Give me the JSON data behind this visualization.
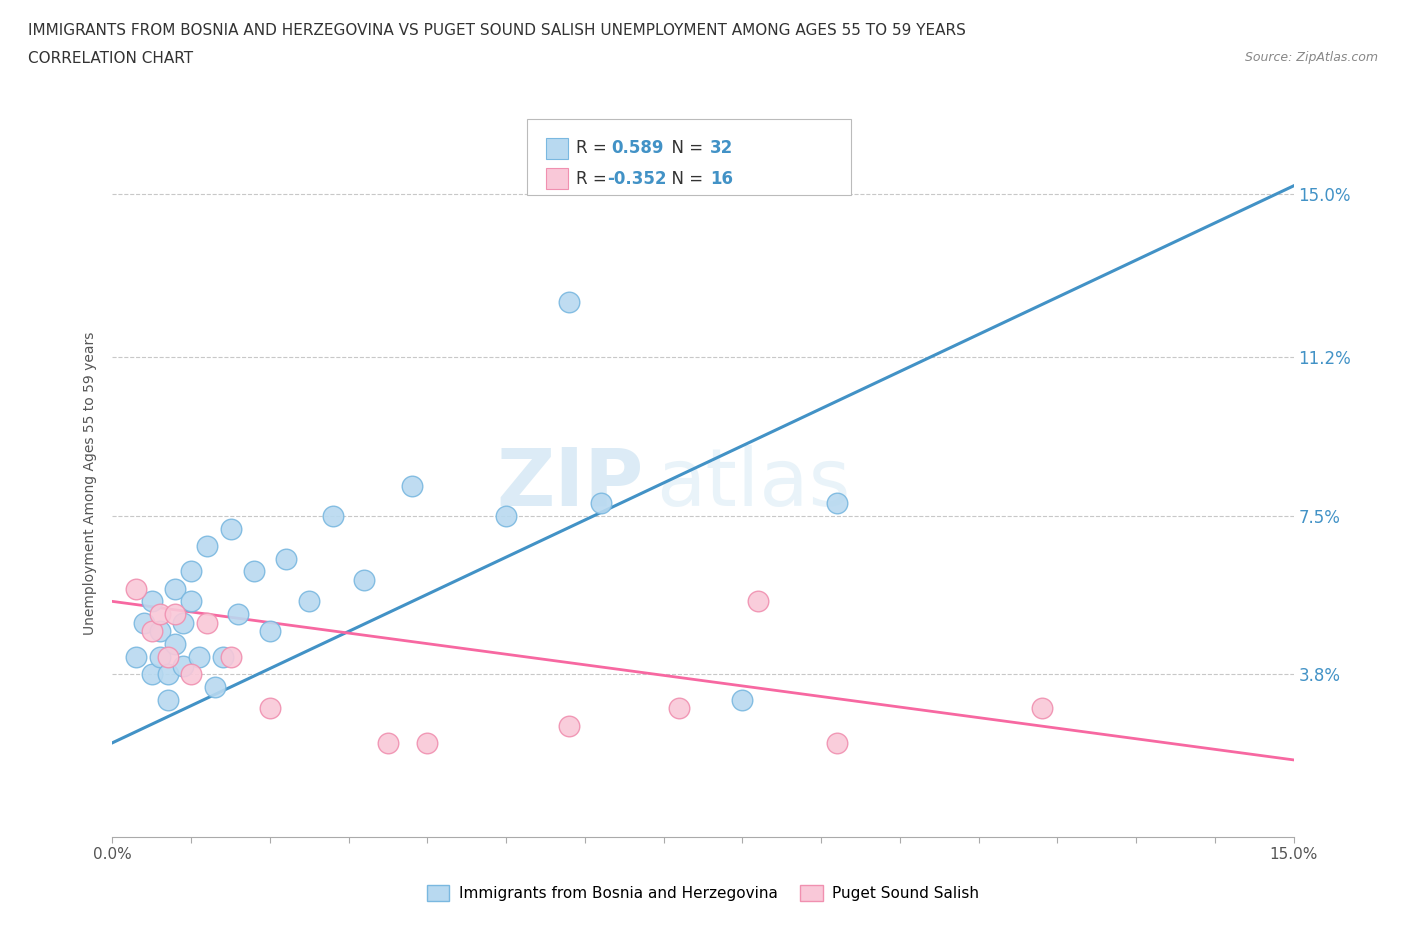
{
  "title_line1": "IMMIGRANTS FROM BOSNIA AND HERZEGOVINA VS PUGET SOUND SALISH UNEMPLOYMENT AMONG AGES 55 TO 59 YEARS",
  "title_line2": "CORRELATION CHART",
  "source_text": "Source: ZipAtlas.com",
  "ylabel": "Unemployment Among Ages 55 to 59 years",
  "xlim": [
    0.0,
    0.15
  ],
  "ylim": [
    0.0,
    0.165
  ],
  "ytick_values": [
    0.0,
    0.038,
    0.075,
    0.112,
    0.15
  ],
  "ytick_labels": [
    "",
    "3.8%",
    "7.5%",
    "11.2%",
    "15.0%"
  ],
  "gridline_values": [
    0.038,
    0.075,
    0.112,
    0.15
  ],
  "background_color": "#ffffff",
  "legend_R1": "0.589",
  "legend_N1": "32",
  "legend_R2": "-0.352",
  "legend_N2": "16",
  "legend_label1": "Immigrants from Bosnia and Herzegovina",
  "legend_label2": "Puget Sound Salish",
  "watermark_zip": "ZIP",
  "watermark_atlas": "atlas",
  "blue_scatter_x": [
    0.003,
    0.004,
    0.005,
    0.005,
    0.006,
    0.006,
    0.007,
    0.007,
    0.008,
    0.008,
    0.009,
    0.009,
    0.01,
    0.01,
    0.011,
    0.012,
    0.013,
    0.014,
    0.015,
    0.016,
    0.018,
    0.02,
    0.022,
    0.025,
    0.028,
    0.032,
    0.038,
    0.05,
    0.058,
    0.062,
    0.08,
    0.092
  ],
  "blue_scatter_y": [
    0.042,
    0.05,
    0.038,
    0.055,
    0.042,
    0.048,
    0.038,
    0.032,
    0.058,
    0.045,
    0.05,
    0.04,
    0.062,
    0.055,
    0.042,
    0.068,
    0.035,
    0.042,
    0.072,
    0.052,
    0.062,
    0.048,
    0.065,
    0.055,
    0.075,
    0.06,
    0.082,
    0.075,
    0.125,
    0.078,
    0.032,
    0.078
  ],
  "pink_scatter_x": [
    0.003,
    0.005,
    0.006,
    0.007,
    0.008,
    0.01,
    0.012,
    0.015,
    0.02,
    0.035,
    0.04,
    0.058,
    0.072,
    0.082,
    0.092,
    0.118
  ],
  "pink_scatter_y": [
    0.058,
    0.048,
    0.052,
    0.042,
    0.052,
    0.038,
    0.05,
    0.042,
    0.03,
    0.022,
    0.022,
    0.026,
    0.03,
    0.055,
    0.022,
    0.03
  ],
  "blue_line_x": [
    0.0,
    0.15
  ],
  "blue_line_y_start": 0.022,
  "blue_line_y_end": 0.152,
  "pink_line_x": [
    0.0,
    0.15
  ],
  "pink_line_y_start": 0.055,
  "pink_line_y_end": 0.018
}
